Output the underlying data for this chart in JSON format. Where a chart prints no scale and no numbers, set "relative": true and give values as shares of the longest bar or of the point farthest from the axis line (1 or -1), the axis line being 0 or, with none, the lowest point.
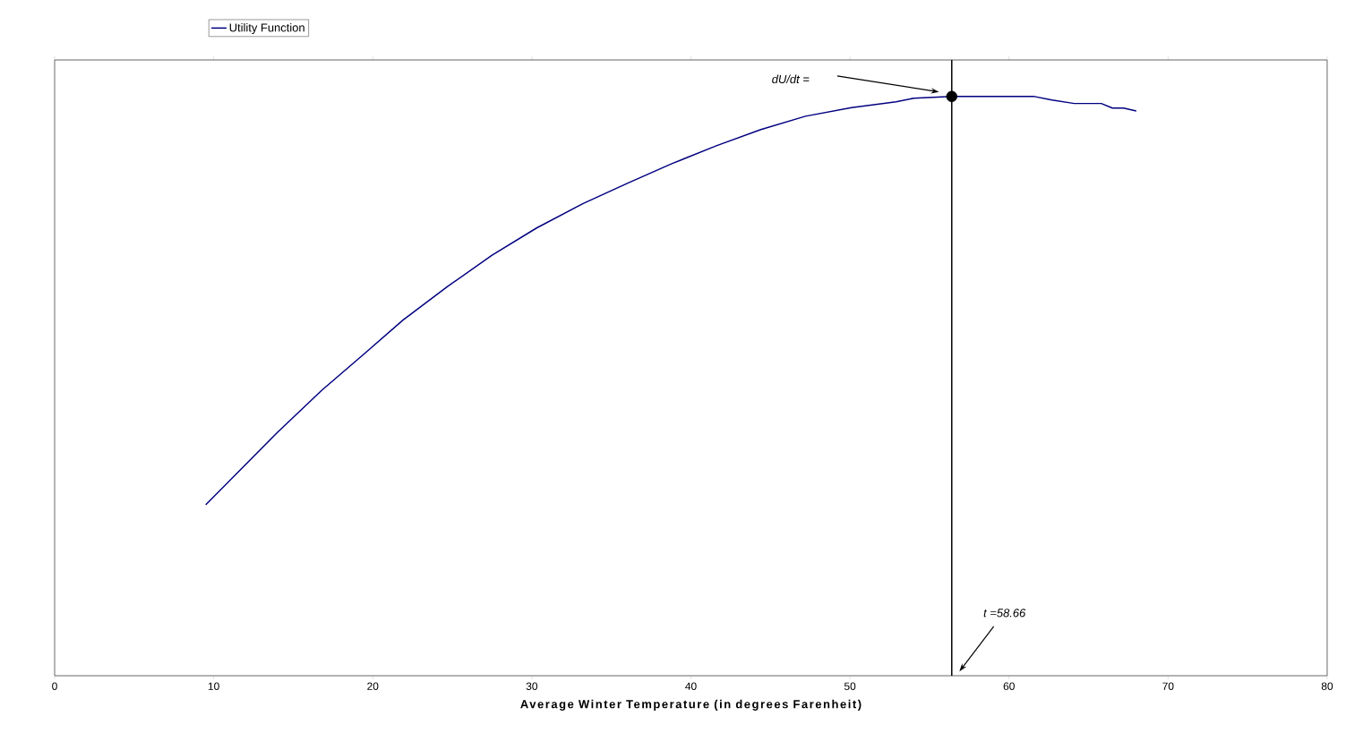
{
  "chart_data": {
    "type": "line",
    "relative": true,
    "xlabel": "Average Winter Temperature (in degrees Farenheit)",
    "xlim": [
      0,
      80
    ],
    "xticks": [
      0,
      10,
      20,
      30,
      40,
      50,
      60,
      70,
      80
    ],
    "tick_labels": "x",
    "grid": false,
    "legend": "top left",
    "marker": "none",
    "line_style": "solid",
    "series": [
      {
        "name": "Utility Function",
        "color": "#000080",
        "x": [
          9.5,
          14.0,
          16.8,
          19.6,
          21.9,
          24.7,
          27.5,
          30.3,
          33.2,
          36.0,
          38.8,
          41.6,
          44.4,
          47.2,
          50.1,
          52.9,
          54.0,
          56.4,
          61.6,
          62.7,
          64.1,
          65.8,
          66.5,
          67.2,
          68.0
        ],
        "values": [
          0.295,
          0.42,
          0.493,
          0.559,
          0.614,
          0.672,
          0.726,
          0.773,
          0.815,
          0.85,
          0.884,
          0.915,
          0.943,
          0.966,
          0.981,
          0.991,
          0.997,
          1.0,
          1.0,
          0.994,
          0.988,
          0.988,
          0.98,
          0.98,
          0.975
        ]
      },
      {
        "type": "scatter",
        "marker": "circle",
        "color": "#000000",
        "x": [
          56.4
        ],
        "values": [
          1.0
        ]
      }
    ],
    "ref_lines": [
      {
        "axis": "x",
        "value": 56.4,
        "color": "#000000"
      }
    ],
    "annotations": [
      "dU/dt =",
      "t =58.66"
    ]
  }
}
